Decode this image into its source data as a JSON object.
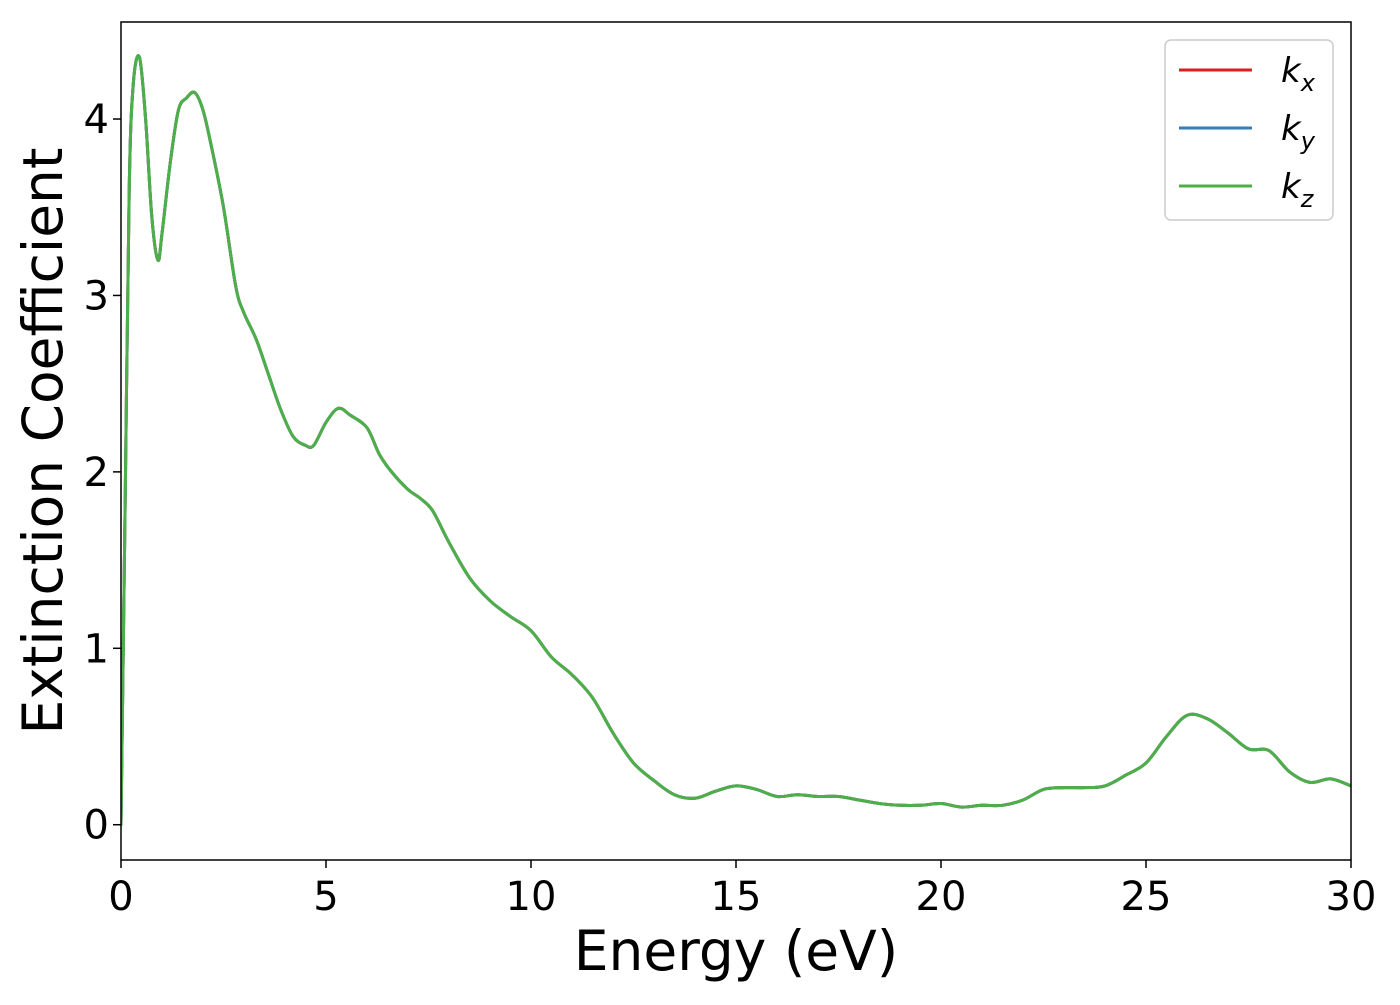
{
  "chart_data": {
    "type": "line",
    "xlabel": "Energy (eV)",
    "ylabel": "Extinction Coefficient",
    "xlim": [
      0,
      30
    ],
    "ylim": [
      -0.2,
      4.55
    ],
    "xticks": [
      0,
      5,
      10,
      15,
      20,
      25,
      30
    ],
    "yticks": [
      0,
      1,
      2,
      3,
      4
    ],
    "grid": false,
    "legend_position": "top-right",
    "series": [
      {
        "name": "k",
        "subscript": "x",
        "color": "#e41a1c",
        "x": [
          0,
          0.1,
          0.2,
          0.3,
          0.45,
          0.6,
          0.75,
          0.9,
          1.0,
          1.2,
          1.4,
          1.6,
          1.8,
          2.0,
          2.2,
          2.5,
          2.8,
          3.0,
          3.3,
          3.6,
          3.9,
          4.2,
          4.5,
          4.7,
          5.0,
          5.3,
          5.6,
          6.0,
          6.3,
          6.6,
          7.0,
          7.3,
          7.6,
          8.0,
          8.5,
          9.0,
          9.5,
          10.0,
          10.5,
          11.0,
          11.5,
          12.0,
          12.5,
          13.0,
          13.5,
          14.0,
          14.5,
          15.0,
          15.5,
          16.0,
          16.5,
          17.0,
          17.5,
          18.0,
          18.5,
          19.0,
          19.5,
          20.0,
          20.5,
          21.0,
          21.5,
          22.0,
          22.5,
          23.0,
          23.5,
          24.0,
          24.5,
          25.0,
          25.5,
          26.0,
          26.5,
          27.0,
          27.5,
          28.0,
          28.5,
          29.0,
          29.5,
          30.0
        ],
        "y": [
          0,
          1.8,
          3.6,
          4.2,
          4.35,
          4.0,
          3.45,
          3.2,
          3.35,
          3.75,
          4.05,
          4.12,
          4.15,
          4.05,
          3.85,
          3.5,
          3.05,
          2.9,
          2.75,
          2.55,
          2.35,
          2.2,
          2.15,
          2.15,
          2.28,
          2.36,
          2.32,
          2.25,
          2.1,
          2.0,
          1.9,
          1.85,
          1.78,
          1.6,
          1.4,
          1.27,
          1.18,
          1.1,
          0.95,
          0.85,
          0.72,
          0.52,
          0.35,
          0.25,
          0.17,
          0.15,
          0.19,
          0.22,
          0.2,
          0.16,
          0.17,
          0.16,
          0.16,
          0.14,
          0.12,
          0.11,
          0.11,
          0.12,
          0.1,
          0.11,
          0.11,
          0.14,
          0.2,
          0.21,
          0.21,
          0.22,
          0.28,
          0.35,
          0.5,
          0.62,
          0.6,
          0.52,
          0.43,
          0.42,
          0.3,
          0.24,
          0.26,
          0.22
        ]
      },
      {
        "name": "k",
        "subscript": "y",
        "color": "#377eb8",
        "x": [
          0,
          0.1,
          0.2,
          0.3,
          0.45,
          0.6,
          0.75,
          0.9,
          1.0,
          1.2,
          1.4,
          1.6,
          1.8,
          2.0,
          2.2,
          2.5,
          2.8,
          3.0,
          3.3,
          3.6,
          3.9,
          4.2,
          4.5,
          4.7,
          5.0,
          5.3,
          5.6,
          6.0,
          6.3,
          6.6,
          7.0,
          7.3,
          7.6,
          8.0,
          8.5,
          9.0,
          9.5,
          10.0,
          10.5,
          11.0,
          11.5,
          12.0,
          12.5,
          13.0,
          13.5,
          14.0,
          14.5,
          15.0,
          15.5,
          16.0,
          16.5,
          17.0,
          17.5,
          18.0,
          18.5,
          19.0,
          19.5,
          20.0,
          20.5,
          21.0,
          21.5,
          22.0,
          22.5,
          23.0,
          23.5,
          24.0,
          24.5,
          25.0,
          25.5,
          26.0,
          26.5,
          27.0,
          27.5,
          28.0,
          28.5,
          29.0,
          29.5,
          30.0
        ],
        "y": [
          0,
          1.8,
          3.6,
          4.2,
          4.35,
          4.0,
          3.45,
          3.2,
          3.35,
          3.75,
          4.05,
          4.12,
          4.15,
          4.05,
          3.85,
          3.5,
          3.05,
          2.9,
          2.75,
          2.55,
          2.35,
          2.2,
          2.15,
          2.15,
          2.28,
          2.36,
          2.32,
          2.25,
          2.1,
          2.0,
          1.9,
          1.85,
          1.78,
          1.6,
          1.4,
          1.27,
          1.18,
          1.1,
          0.95,
          0.85,
          0.72,
          0.52,
          0.35,
          0.25,
          0.17,
          0.15,
          0.19,
          0.22,
          0.2,
          0.16,
          0.17,
          0.16,
          0.16,
          0.14,
          0.12,
          0.11,
          0.11,
          0.12,
          0.1,
          0.11,
          0.11,
          0.14,
          0.2,
          0.21,
          0.21,
          0.22,
          0.28,
          0.35,
          0.5,
          0.62,
          0.6,
          0.52,
          0.43,
          0.42,
          0.3,
          0.24,
          0.26,
          0.22
        ]
      },
      {
        "name": "k",
        "subscript": "z",
        "color": "#4daf4a",
        "x": [
          0,
          0.1,
          0.2,
          0.3,
          0.45,
          0.6,
          0.75,
          0.9,
          1.0,
          1.2,
          1.4,
          1.6,
          1.8,
          2.0,
          2.2,
          2.5,
          2.8,
          3.0,
          3.3,
          3.6,
          3.9,
          4.2,
          4.5,
          4.7,
          5.0,
          5.3,
          5.6,
          6.0,
          6.3,
          6.6,
          7.0,
          7.3,
          7.6,
          8.0,
          8.5,
          9.0,
          9.5,
          10.0,
          10.5,
          11.0,
          11.5,
          12.0,
          12.5,
          13.0,
          13.5,
          14.0,
          14.5,
          15.0,
          15.5,
          16.0,
          16.5,
          17.0,
          17.5,
          18.0,
          18.5,
          19.0,
          19.5,
          20.0,
          20.5,
          21.0,
          21.5,
          22.0,
          22.5,
          23.0,
          23.5,
          24.0,
          24.5,
          25.0,
          25.5,
          26.0,
          26.5,
          27.0,
          27.5,
          28.0,
          28.5,
          29.0,
          29.5,
          30.0
        ],
        "y": [
          0,
          1.8,
          3.6,
          4.2,
          4.35,
          4.0,
          3.45,
          3.2,
          3.35,
          3.75,
          4.05,
          4.12,
          4.15,
          4.05,
          3.85,
          3.5,
          3.05,
          2.9,
          2.75,
          2.55,
          2.35,
          2.2,
          2.15,
          2.15,
          2.28,
          2.36,
          2.32,
          2.25,
          2.1,
          2.0,
          1.9,
          1.85,
          1.78,
          1.6,
          1.4,
          1.27,
          1.18,
          1.1,
          0.95,
          0.85,
          0.72,
          0.52,
          0.35,
          0.25,
          0.17,
          0.15,
          0.19,
          0.22,
          0.2,
          0.16,
          0.17,
          0.16,
          0.16,
          0.14,
          0.12,
          0.11,
          0.11,
          0.12,
          0.1,
          0.11,
          0.11,
          0.14,
          0.2,
          0.21,
          0.21,
          0.22,
          0.28,
          0.35,
          0.5,
          0.62,
          0.6,
          0.52,
          0.43,
          0.42,
          0.3,
          0.24,
          0.26,
          0.22
        ]
      }
    ]
  }
}
